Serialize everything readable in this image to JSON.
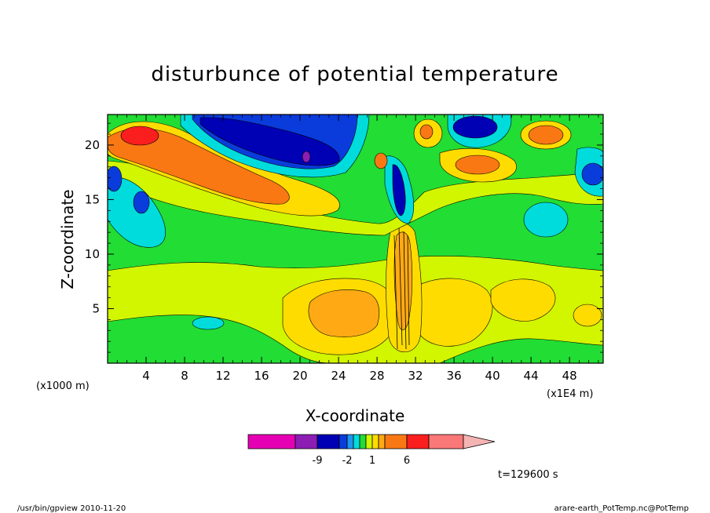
{
  "chart_data": {
    "type": "heatmap",
    "title": "disturbunce of potential temperature",
    "xlabel": "X-coordinate",
    "ylabel": "Z-coordinate",
    "x_unit_left": "(x1000 m)",
    "x_unit_right": "(x1E4 m)",
    "x_ticks": [
      "4",
      "8",
      "12",
      "16",
      "20",
      "24",
      "28",
      "32",
      "36",
      "40",
      "44",
      "48"
    ],
    "x_tick_values": [
      4,
      8,
      12,
      16,
      20,
      24,
      28,
      32,
      36,
      40,
      44,
      48
    ],
    "y_ticks": [
      "5",
      "10",
      "15",
      "20"
    ],
    "y_tick_values": [
      5,
      10,
      15,
      20
    ],
    "xlim": [
      0,
      51.5
    ],
    "ylim": [
      0,
      22.8
    ],
    "colorbar": {
      "labels": [
        "-9",
        "-2",
        "1",
        "6"
      ],
      "colors": [
        "#e600b4",
        "#8c1eb4",
        "#0000b4",
        "#0a3cdc",
        "#1e96f0",
        "#00dcdc",
        "#22dd33",
        "#d2f500",
        "#ffdc00",
        "#ffaa14",
        "#fa7814",
        "#fa1e1e",
        "#fa7878",
        "#f5b4b4"
      ]
    },
    "time_label": "t=129600 s",
    "footer_left": "/usr/bin/gpview   2010-11-20",
    "footer_right": "arare-earth_PotTemp.nc@PotTemp"
  }
}
